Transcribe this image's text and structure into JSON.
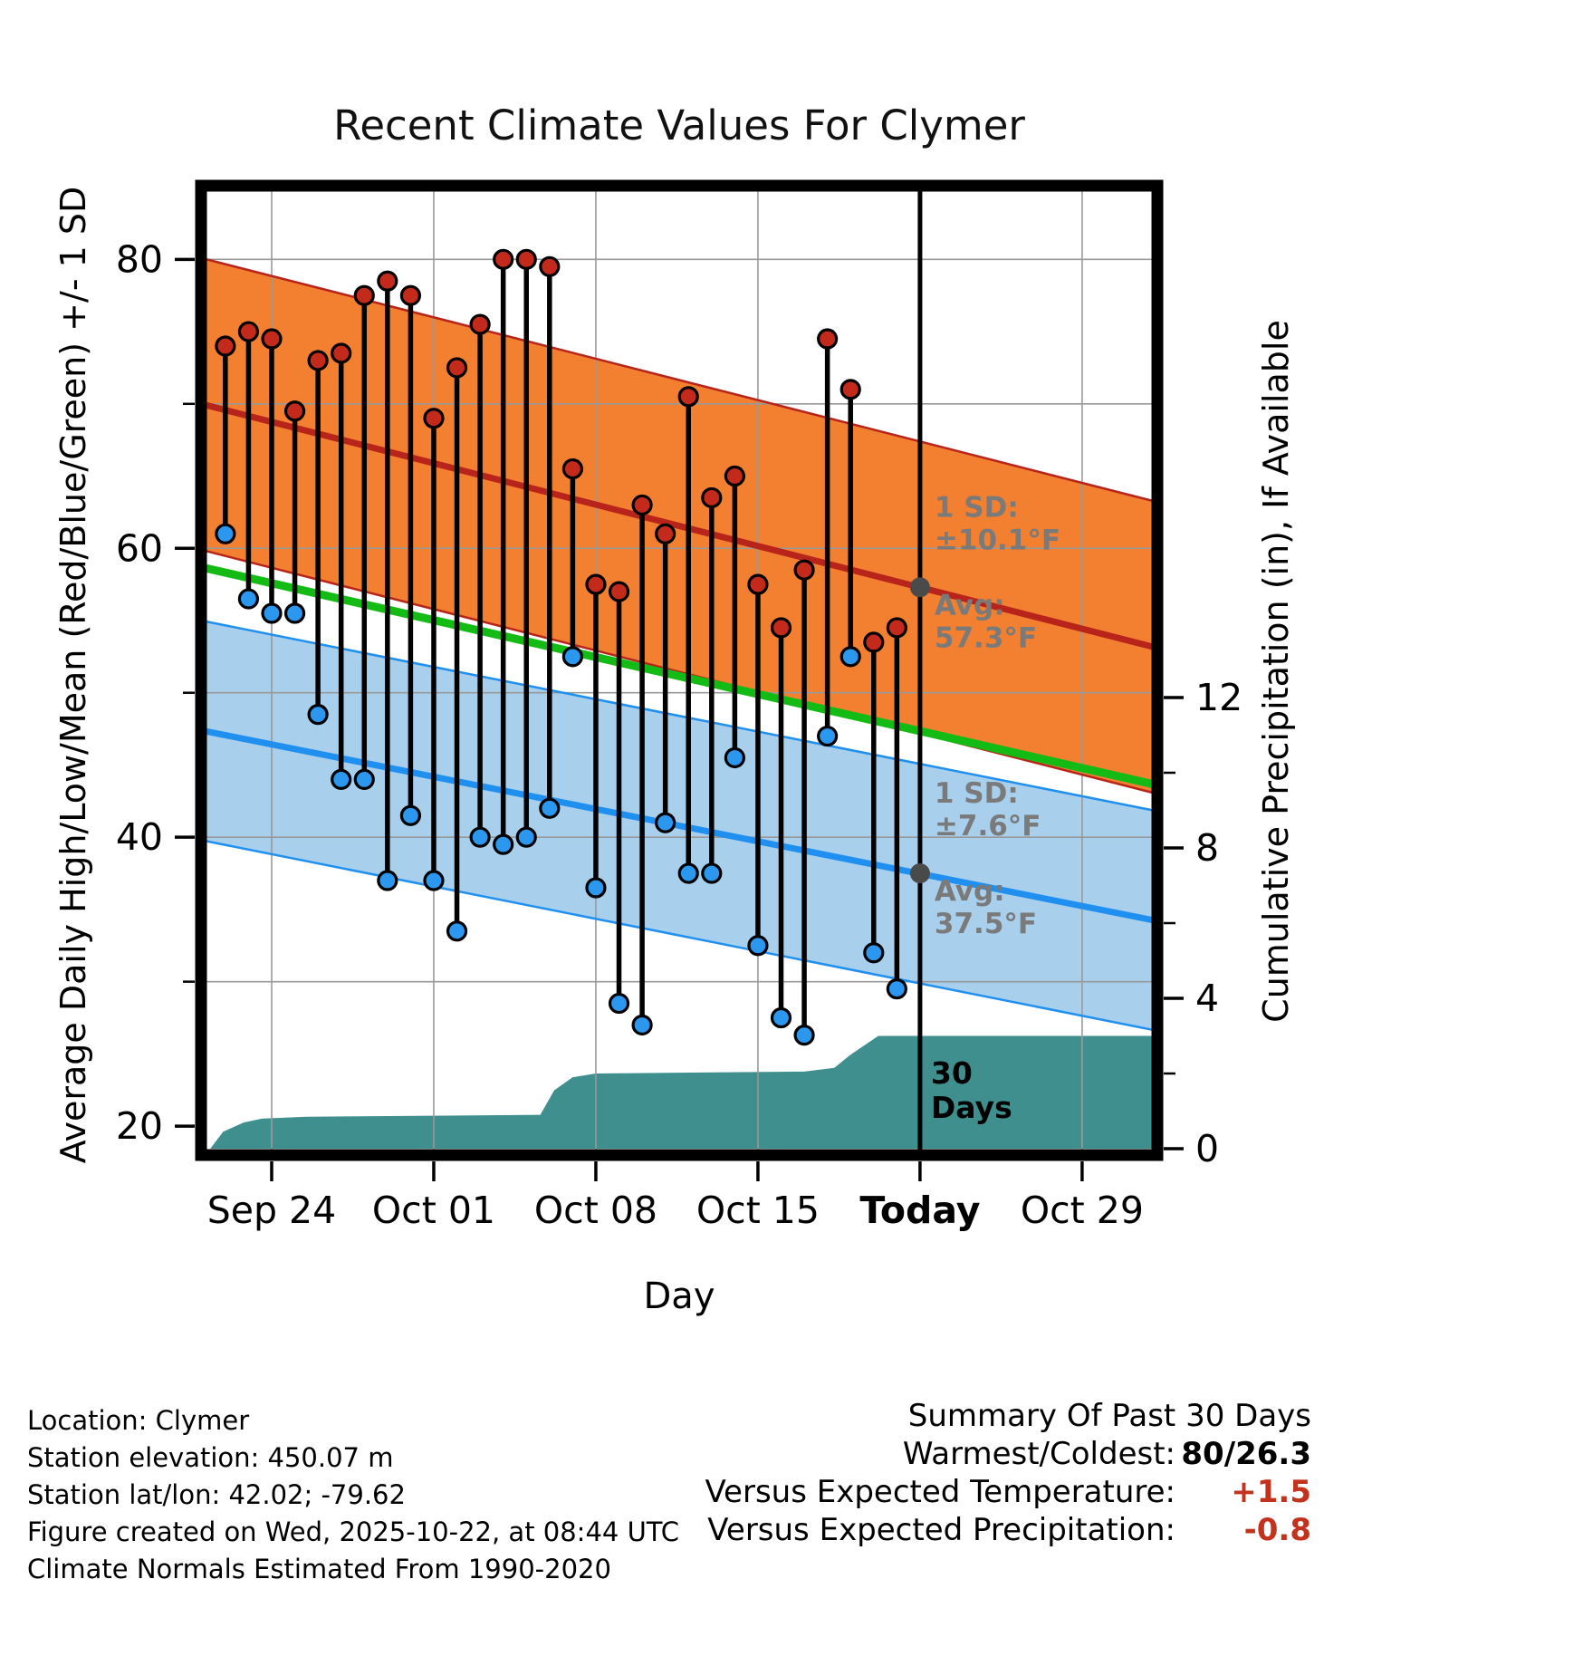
{
  "footer_left": {
    "lines": [
      "Location: Clymer",
      "Station elevation: 450.07 m",
      "Station lat/lon: 42.02; -79.62",
      "Figure created on Wed, 2025-10-22, at 08:44 UTC",
      "Climate Normals Estimated From 1990-2020"
    ]
  },
  "summary": {
    "title": "Summary Of Past 30 Days",
    "rows": [
      {
        "label": "Warmest/Coldest:",
        "value": "80/26.3",
        "value_color": "#000000"
      },
      {
        "label": "Versus Expected Temperature:",
        "value": "+1.5",
        "value_color": "#C3321C"
      },
      {
        "label": "Versus Expected Precipitation:",
        "value": "-0.8",
        "value_color": "#C3321C"
      }
    ]
  },
  "chart_data": {
    "type": "line",
    "title": "Recent Climate Values For Clymer",
    "xlabel": "Day",
    "ylabel_left": "Average Daily High/Low/Mean (Red/Blue/Green) +/- 1 SD",
    "ylabel_right": "Cumulative Precipitation (in), If Available",
    "x_domain": [
      -0.05,
      41.25
    ],
    "today_day": 31,
    "y_left_range": [
      18,
      85.1
    ],
    "y_left_ticks": [
      20,
      40,
      60,
      80
    ],
    "y_left_minor_ticks": [
      30,
      50,
      70
    ],
    "y_right_ticks": [
      0,
      4,
      8,
      12
    ],
    "y_right_minor_ticks": [
      2,
      6,
      10
    ],
    "grid_y": [
      30,
      40,
      50,
      60,
      70,
      80
    ],
    "x_ticks": [
      {
        "day": 3,
        "label": "Sep 24",
        "bold": false
      },
      {
        "day": 10,
        "label": "Oct 01",
        "bold": false
      },
      {
        "day": 17,
        "label": "Oct 08",
        "bold": false
      },
      {
        "day": 24,
        "label": "Oct 15",
        "bold": false
      },
      {
        "day": 31,
        "label": "Today",
        "bold": true
      },
      {
        "day": 38,
        "label": "Oct 29",
        "bold": false
      }
    ],
    "normals": {
      "high": {
        "start": 70.0,
        "end": 53.1,
        "sd": 10.1
      },
      "low": {
        "start": 47.4,
        "end": 34.2,
        "sd": 7.6
      },
      "mean": {
        "start": 58.7,
        "end": 43.6
      }
    },
    "daily": [
      {
        "day": 1,
        "date": "Sep 22",
        "high": 74,
        "low": 61
      },
      {
        "day": 2,
        "date": "Sep 23",
        "high": 75,
        "low": 56.5
      },
      {
        "day": 3,
        "date": "Sep 24",
        "high": 74.5,
        "low": 55.5
      },
      {
        "day": 4,
        "date": "Sep 25",
        "high": 69.5,
        "low": 55.5
      },
      {
        "day": 5,
        "date": "Sep 26",
        "high": 73,
        "low": 48.5
      },
      {
        "day": 6,
        "date": "Sep 27",
        "high": 73.5,
        "low": 44
      },
      {
        "day": 7,
        "date": "Sep 28",
        "high": 77.5,
        "low": 44
      },
      {
        "day": 8,
        "date": "Sep 29",
        "high": 78.5,
        "low": 37
      },
      {
        "day": 9,
        "date": "Sep 30",
        "high": 77.5,
        "low": 41.5
      },
      {
        "day": 10,
        "date": "Oct 01",
        "high": 69,
        "low": 37
      },
      {
        "day": 11,
        "date": "Oct 02",
        "high": 72.5,
        "low": 33.5
      },
      {
        "day": 12,
        "date": "Oct 03",
        "high": 75.5,
        "low": 40
      },
      {
        "day": 13,
        "date": "Oct 04",
        "high": 80,
        "low": 39.5
      },
      {
        "day": 14,
        "date": "Oct 05",
        "high": 80,
        "low": 40
      },
      {
        "day": 15,
        "date": "Oct 06",
        "high": 79.5,
        "low": 42
      },
      {
        "day": 16,
        "date": "Oct 07",
        "high": 65.5,
        "low": 52.5
      },
      {
        "day": 17,
        "date": "Oct 08",
        "high": 57.5,
        "low": 36.5
      },
      {
        "day": 18,
        "date": "Oct 09",
        "high": 57,
        "low": 28.5
      },
      {
        "day": 19,
        "date": "Oct 10",
        "high": 63,
        "low": 27
      },
      {
        "day": 20,
        "date": "Oct 11",
        "high": 61,
        "low": 41
      },
      {
        "day": 21,
        "date": "Oct 12",
        "high": 70.5,
        "low": 37.5
      },
      {
        "day": 22,
        "date": "Oct 13",
        "high": 63.5,
        "low": 37.5
      },
      {
        "day": 23,
        "date": "Oct 14",
        "high": 65,
        "low": 45.5
      },
      {
        "day": 24,
        "date": "Oct 15",
        "high": 57.5,
        "low": 32.5
      },
      {
        "day": 25,
        "date": "Oct 16",
        "high": 54.5,
        "low": 27.5
      },
      {
        "day": 26,
        "date": "Oct 17",
        "high": 58.5,
        "low": 26.3
      },
      {
        "day": 27,
        "date": "Oct 18",
        "high": 74.5,
        "low": 47
      },
      {
        "day": 28,
        "date": "Oct 19",
        "high": 71,
        "low": 52.5
      },
      {
        "day": 29,
        "date": "Oct 20",
        "high": 53.5,
        "low": 32
      },
      {
        "day": 30,
        "date": "Oct 21",
        "high": 54.5,
        "low": 29.5
      }
    ],
    "precip": {
      "points": [
        [
          0.35,
          0
        ],
        [
          0.9,
          0.45
        ],
        [
          1.8,
          0.7
        ],
        [
          2.6,
          0.8
        ],
        [
          4.5,
          0.85
        ],
        [
          14.6,
          0.9
        ],
        [
          15.2,
          1.55
        ],
        [
          16.0,
          1.9
        ],
        [
          17.0,
          2.0
        ],
        [
          26.0,
          2.05
        ],
        [
          27.3,
          2.15
        ],
        [
          28.0,
          2.5
        ],
        [
          29.2,
          3.0
        ],
        [
          41.25,
          3.0
        ]
      ]
    },
    "annotations": {
      "high": {
        "anchor_temp": 57.3,
        "lines": [
          "1 SD:",
          "±10.1°F",
          "Avg:",
          "57.3°F"
        ]
      },
      "low": {
        "anchor_temp": 37.5,
        "lines": [
          "1 SD:",
          "±7.6°F",
          "Avg:",
          "37.5°F"
        ]
      },
      "today": {
        "lines": [
          "30",
          "Days"
        ]
      }
    },
    "colors": {
      "high_band": "#F28030",
      "high_line": "#B8241A",
      "low_band": "#A8CFEC",
      "low_line": "#2090F0",
      "mean_line": "#15BB15",
      "high_dot": "#C42A1C",
      "low_dot": "#2B97EE",
      "stem": "#000000",
      "precip_fill": "#3F8F8F",
      "grid": "#999999",
      "today_line": "#000000",
      "anno_dot": "#4A4A4A",
      "anno_text": "#7A7A7A",
      "border": "#000000"
    }
  }
}
